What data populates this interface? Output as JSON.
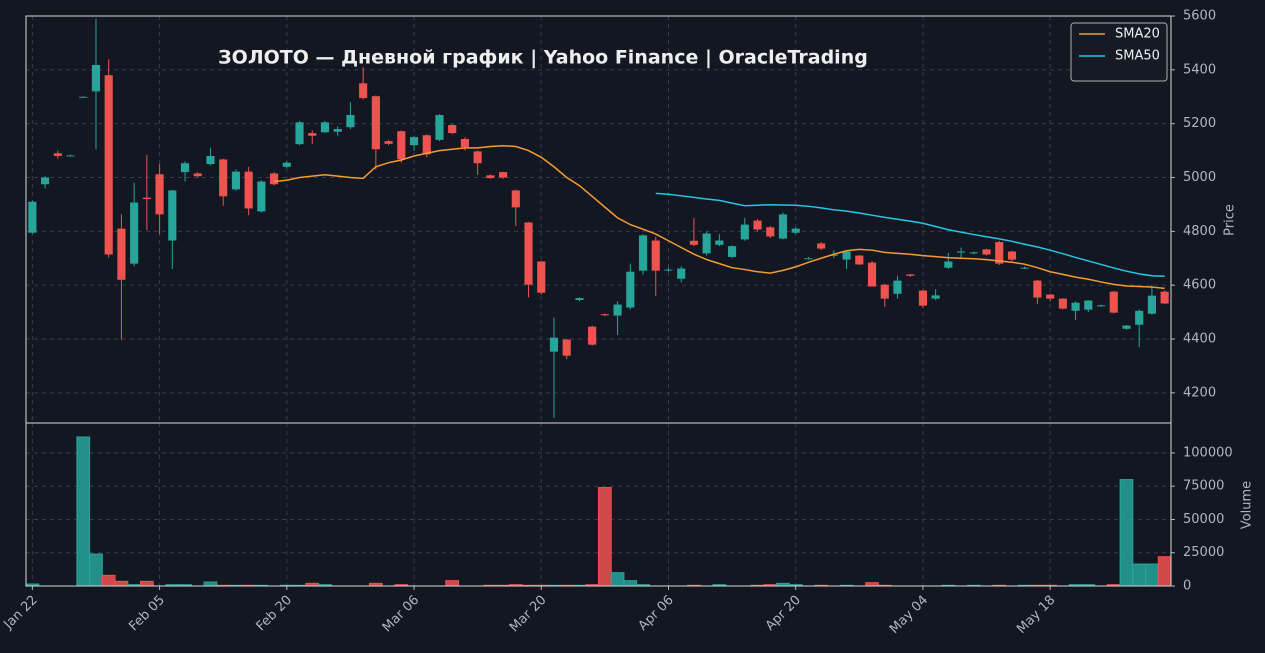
{
  "chart_data": [
    {
      "type": "candlestick",
      "title": "ЗОЛОТО  —  Дневной график  |  Yahoo Finance  |  OracleTrading",
      "ylabel": "Price",
      "up_color": "#26a69a",
      "down_color": "#ef5350",
      "open": [
        4795,
        4975,
        5090,
        5080,
        5300,
        5320,
        5380,
        4810,
        4680,
        4925,
        5012,
        4766,
        5020,
        5015,
        5050,
        5067,
        4956,
        5022,
        4874,
        5015,
        5040,
        5124,
        5165,
        5168,
        5170,
        5187,
        5350,
        5302,
        5135,
        5172,
        5120,
        5157,
        5140,
        5195,
        5143,
        5097,
        5008,
        5020,
        4952,
        4833,
        4688,
        4353,
        4398,
        4545,
        4446,
        4492,
        4487,
        4517,
        4654,
        4766,
        4655,
        4624,
        4765,
        4718,
        4750,
        4705,
        4770,
        4840,
        4815,
        4773,
        4795,
        4698,
        4755,
        4712,
        4695,
        4710,
        4684,
        4602,
        4568,
        4640,
        4580,
        4550,
        4665,
        4722,
        4718,
        4733,
        4760,
        4725,
        4663,
        4617,
        4565,
        4550,
        4505,
        4509,
        4523,
        4576,
        4438,
        4453,
        4494,
        4576
      ],
      "high": [
        4915,
        5005,
        5100,
        5085,
        5302,
        5590,
        5440,
        4863,
        4980,
        5085,
        5050,
        4955,
        5060,
        5020,
        5110,
        5070,
        5030,
        5040,
        4990,
        5020,
        5060,
        5210,
        5175,
        5210,
        5190,
        5280,
        5410,
        5305,
        5140,
        5175,
        5155,
        5160,
        5235,
        5198,
        5150,
        5100,
        5012,
        5022,
        4955,
        4835,
        4690,
        4480,
        4400,
        4555,
        4450,
        4495,
        4540,
        4680,
        4790,
        4780,
        4665,
        4670,
        4850,
        4800,
        4790,
        4748,
        4850,
        4845,
        4820,
        4870,
        4815,
        4705,
        4760,
        4730,
        4730,
        4712,
        4690,
        4605,
        4635,
        4642,
        4582,
        4585,
        4720,
        4740,
        4725,
        4735,
        4765,
        4728,
        4670,
        4620,
        4568,
        4552,
        4540,
        4545,
        4528,
        4578,
        4452,
        4510,
        4600,
        4580
      ],
      "low": [
        4790,
        4960,
        5070,
        5078,
        5298,
        5105,
        4703,
        4397,
        4670,
        4805,
        4790,
        4660,
        4985,
        5000,
        5045,
        4895,
        4950,
        4860,
        4870,
        4970,
        5035,
        5120,
        5125,
        5165,
        5155,
        5180,
        5290,
        5030,
        5120,
        5055,
        5100,
        5075,
        5135,
        5160,
        5100,
        5010,
        4995,
        4995,
        4820,
        4555,
        4565,
        4107,
        4325,
        4540,
        4375,
        4485,
        4415,
        4510,
        4640,
        4560,
        4650,
        4610,
        4745,
        4710,
        4745,
        4700,
        4765,
        4800,
        4775,
        4770,
        4790,
        4695,
        4730,
        4700,
        4660,
        4675,
        4595,
        4520,
        4550,
        4630,
        4515,
        4545,
        4660,
        4700,
        4715,
        4710,
        4675,
        4690,
        4660,
        4530,
        4540,
        4510,
        4470,
        4500,
        4520,
        4495,
        4435,
        4370,
        4490,
        4530
      ],
      "close": [
        4910,
        5000,
        5080,
        5082,
        5300,
        5418,
        4714,
        4620,
        4907,
        4920,
        4863,
        4952,
        5053,
        5005,
        5080,
        4930,
        5022,
        4885,
        4985,
        4975,
        5055,
        5205,
        5155,
        5205,
        5180,
        5232,
        5295,
        5105,
        5125,
        5068,
        5150,
        5086,
        5232,
        5165,
        5113,
        5053,
        4998,
        5000,
        4889,
        4602,
        4572,
        4405,
        4338,
        4552,
        4379,
        4488,
        4528,
        4650,
        4785,
        4654,
        4658,
        4662,
        4750,
        4792,
        4766,
        4745,
        4825,
        4807,
        4781,
        4863,
        4810,
        4700,
        4736,
        4713,
        4725,
        4677,
        4595,
        4550,
        4617,
        4635,
        4524,
        4562,
        4688,
        4725,
        4722,
        4714,
        4680,
        4695,
        4665,
        4554,
        4550,
        4513,
        4535,
        4543,
        4525,
        4498,
        4450,
        4505,
        4561,
        4532
      ],
      "series": [
        {
          "name": "SMA20",
          "color": "#f39c33",
          "values": [
            null,
            null,
            null,
            null,
            null,
            null,
            null,
            null,
            null,
            null,
            null,
            null,
            null,
            null,
            null,
            null,
            null,
            null,
            null,
            4985,
            4990,
            5000,
            5005,
            5010,
            5005,
            5000,
            4997,
            5040,
            5055,
            5065,
            5080,
            5090,
            5100,
            5105,
            5110,
            5110,
            5115,
            5118,
            5115,
            5100,
            5075,
            5040,
            5000,
            4970,
            4930,
            4890,
            4850,
            4825,
            4808,
            4790,
            4765,
            4740,
            4715,
            4695,
            4680,
            4665,
            4658,
            4650,
            4645,
            4655,
            4668,
            4685,
            4700,
            4715,
            4728,
            4733,
            4730,
            4722,
            4718,
            4715,
            4710,
            4706,
            4702,
            4700,
            4698,
            4695,
            4690,
            4685,
            4678,
            4665,
            4650,
            4640,
            4630,
            4622,
            4612,
            4603,
            4597,
            4595,
            4593,
            4588
          ]
        },
        {
          "name": "SMA50",
          "color": "#29c5e6",
          "values": [
            null,
            null,
            null,
            null,
            null,
            null,
            null,
            null,
            null,
            null,
            null,
            null,
            null,
            null,
            null,
            null,
            null,
            null,
            null,
            null,
            null,
            null,
            null,
            null,
            null,
            null,
            null,
            null,
            null,
            null,
            null,
            null,
            null,
            null,
            null,
            null,
            null,
            null,
            null,
            null,
            null,
            null,
            null,
            null,
            null,
            null,
            null,
            null,
            null,
            4941,
            4938,
            4932,
            4926,
            4920,
            4915,
            4905,
            4895,
            4897,
            4899,
            4898,
            4897,
            4893,
            4887,
            4880,
            4875,
            4868,
            4860,
            4852,
            4845,
            4838,
            4830,
            4818,
            4806,
            4797,
            4788,
            4780,
            4772,
            4763,
            4752,
            4742,
            4730,
            4717,
            4703,
            4690,
            4677,
            4664,
            4652,
            4642,
            4635,
            4633
          ]
        }
      ],
      "legend": "upper right",
      "ylim": [
        4088,
        5600
      ],
      "yticks": [
        4200,
        4400,
        4600,
        4800,
        5000,
        5200,
        5400,
        5600
      ],
      "grid": true
    },
    {
      "type": "bar",
      "ylabel": "Volume",
      "categories": [
        "Jan 22",
        null,
        null,
        null,
        null,
        null,
        null,
        null,
        null,
        null,
        "Feb 05",
        null,
        null,
        null,
        null,
        null,
        null,
        null,
        null,
        null,
        "Feb 20",
        null,
        null,
        null,
        null,
        null,
        null,
        null,
        null,
        null,
        "Mar 06",
        null,
        null,
        null,
        null,
        null,
        null,
        null,
        null,
        null,
        "Mar 20",
        null,
        null,
        null,
        null,
        null,
        null,
        null,
        null,
        null,
        "Apr 06",
        null,
        null,
        null,
        null,
        null,
        null,
        null,
        null,
        null,
        "Apr 20",
        null,
        null,
        null,
        null,
        null,
        null,
        null,
        null,
        null,
        "May 04",
        null,
        null,
        null,
        null,
        null,
        null,
        null,
        null,
        null,
        "May 18",
        null,
        null,
        null,
        null,
        null,
        null,
        null,
        null,
        null
      ],
      "values": [
        1500,
        0,
        0,
        0,
        112000,
        24000,
        8000,
        3500,
        1000,
        3500,
        0,
        1000,
        1000,
        0,
        3000,
        500,
        500,
        500,
        500,
        0,
        500,
        500,
        2000,
        1000,
        0,
        0,
        0,
        2000,
        0,
        1000,
        0,
        0,
        0,
        4000,
        0,
        0,
        500,
        500,
        1000,
        500,
        500,
        500,
        500,
        500,
        1000,
        74000,
        10000,
        4000,
        1000,
        0,
        0,
        0,
        500,
        0,
        1000,
        0,
        0,
        500,
        1000,
        2000,
        1000,
        0,
        500,
        0,
        500,
        0,
        2500,
        500,
        0,
        0,
        0,
        0,
        500,
        0,
        500,
        0,
        500,
        0,
        500,
        500,
        500,
        0,
        1000,
        1000,
        0,
        1000,
        80000,
        16500,
        16500,
        22000
      ],
      "ylim": [
        0,
        122500
      ],
      "yticks": [
        0,
        25000,
        50000,
        75000,
        100000
      ],
      "grid": true
    }
  ]
}
